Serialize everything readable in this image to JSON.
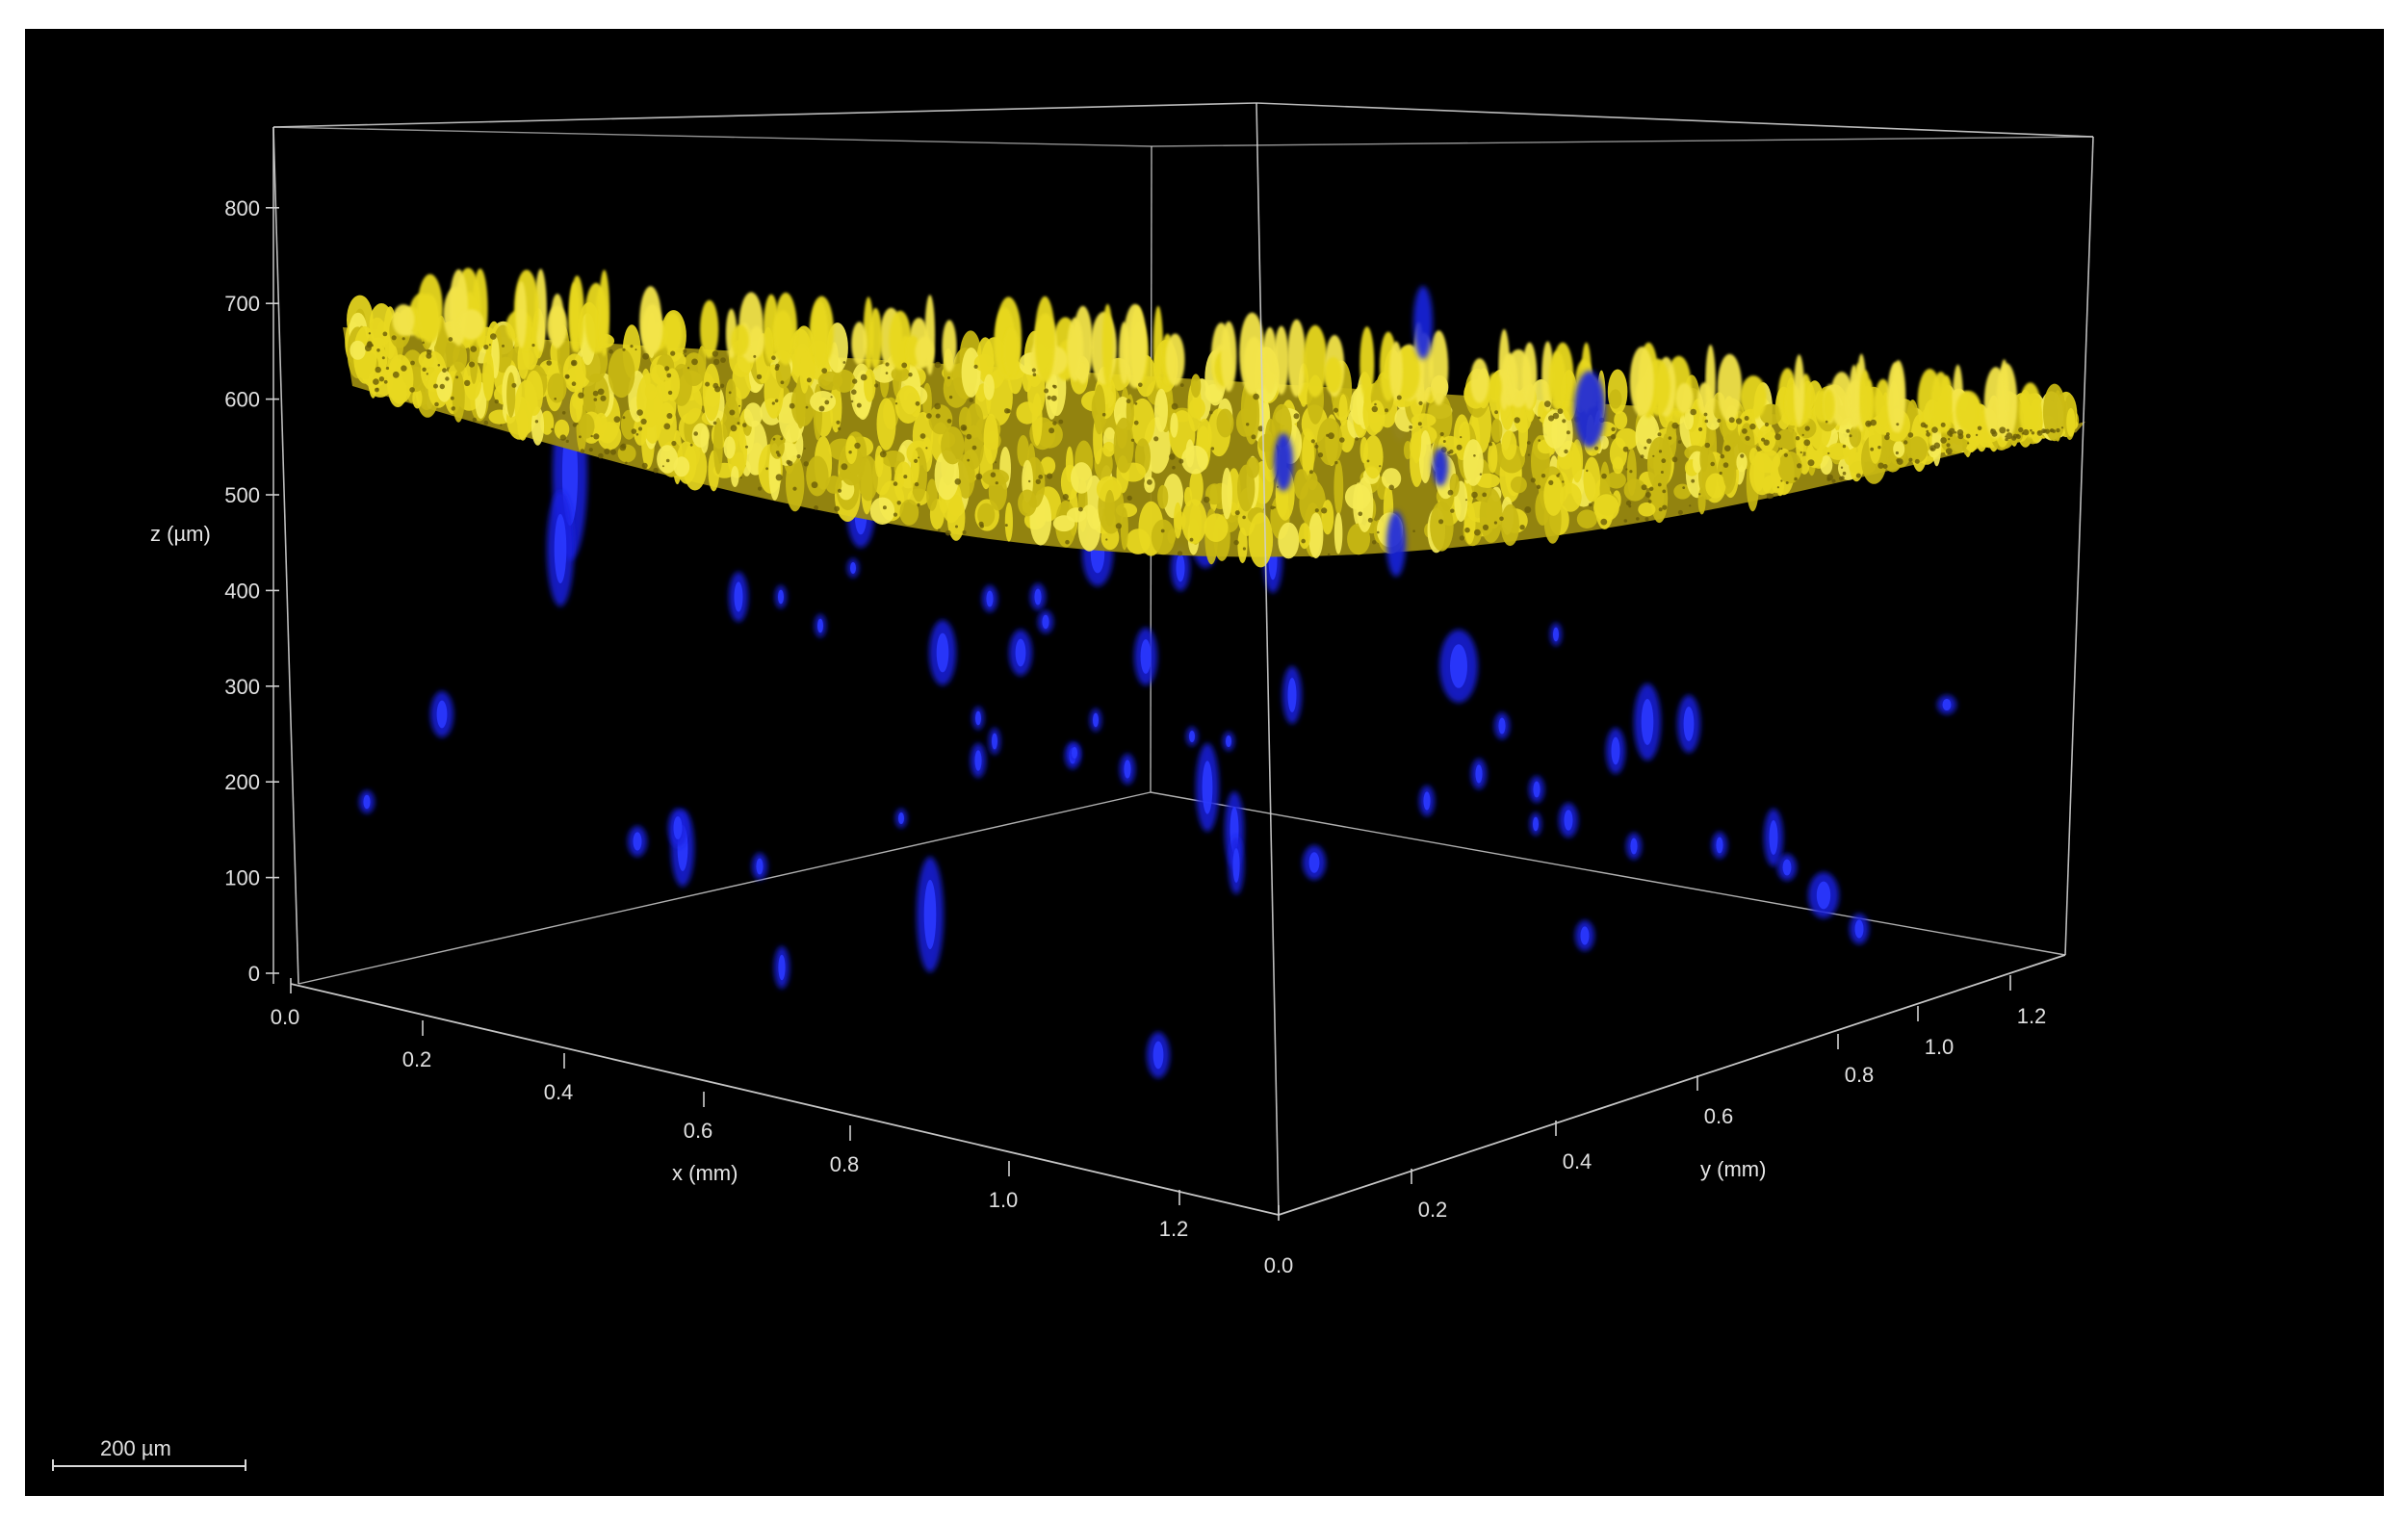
{
  "view": {
    "z_axis_label": "z (µm)",
    "x_axis_label": "x (mm)",
    "y_axis_label": "y (mm)",
    "z_ticks": [
      "0",
      "100",
      "200",
      "300",
      "400",
      "500",
      "600",
      "700",
      "800"
    ],
    "x_ticks": [
      "0.0",
      "0.2",
      "0.4",
      "0.6",
      "0.8",
      "1.0",
      "1.2"
    ],
    "y_ticks": [
      "0.0",
      "0.2",
      "0.4",
      "0.6",
      "0.8",
      "1.0",
      "1.2"
    ],
    "scale_bar_label": "200 µm"
  },
  "colors": {
    "background": "#000000",
    "surface_layer": "#e8d820",
    "surface_layer_dark": "#9a8a10",
    "particles": "#1a22e0",
    "box_lines": "#cfcfcf"
  }
}
